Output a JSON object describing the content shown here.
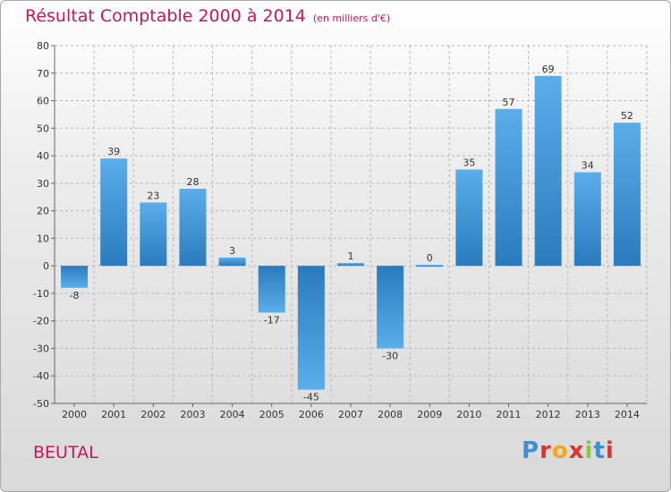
{
  "chart_data": {
    "type": "bar",
    "title": "Résultat Comptable 2000 à 2014",
    "subtitle": "(en milliers d'€)",
    "xlabel": "",
    "ylabel": "",
    "ylim": [
      -50,
      80
    ],
    "ytick_step": 10,
    "grid": true,
    "categories": [
      "2000",
      "2001",
      "2002",
      "2003",
      "2004",
      "2005",
      "2006",
      "2007",
      "2008",
      "2009",
      "2010",
      "2011",
      "2012",
      "2013",
      "2014"
    ],
    "values": [
      -8,
      39,
      23,
      28,
      3,
      -17,
      -45,
      1,
      -30,
      0,
      35,
      57,
      69,
      34,
      52
    ],
    "bar_color_light": "#5aaeea",
    "bar_color_dark": "#2a7bbd"
  },
  "footer": {
    "commune": "BEUTAL",
    "logo_letters": [
      "P",
      "r",
      "o",
      "x",
      "i",
      "t",
      "i"
    ],
    "logo_colors": [
      "#3a8fd8",
      "#e4302e",
      "#f4a91c",
      "#e4302e",
      "#8cc63f",
      "#3a8fd8",
      "#e4302e"
    ]
  },
  "colors": {
    "title": "#c2185b",
    "grid": "#b8b8b8",
    "axis": "#666666"
  }
}
